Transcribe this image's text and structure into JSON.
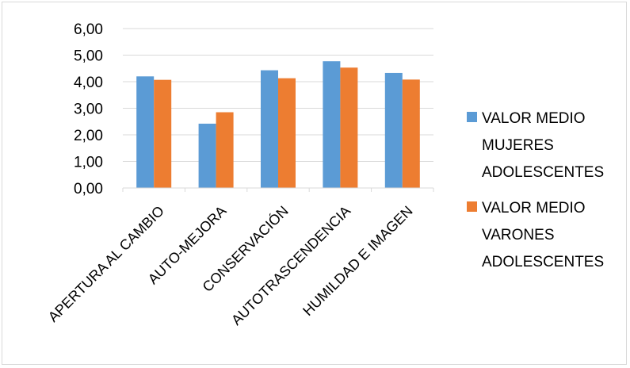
{
  "chart_data": {
    "type": "bar",
    "categories": [
      "APERTURA AL CAMBIO",
      "AUTO-MEJORA",
      "CONSERVACIÓN",
      "AUTOTRASCENDENCIA",
      "HUMILDAD E IMAGEN"
    ],
    "series": [
      {
        "name": "VALOR MEDIO MUJERES ADOLESCENTES",
        "name_lines": [
          "VALOR MEDIO",
          "MUJERES",
          "ADOLESCENTES"
        ],
        "color": "#5b9bd5",
        "values": [
          4.2,
          2.42,
          4.43,
          4.77,
          4.33
        ]
      },
      {
        "name": "VALOR MEDIO VARONES ADOLESCENTES",
        "name_lines": [
          "VALOR MEDIO",
          "VARONES",
          "ADOLESCENTES"
        ],
        "color": "#ed7d31",
        "values": [
          4.07,
          2.85,
          4.13,
          4.53,
          4.08
        ]
      }
    ],
    "y_ticks": [
      "0,00",
      "1,00",
      "2,00",
      "3,00",
      "4,00",
      "5,00",
      "6,00"
    ],
    "ylim": [
      0,
      6
    ],
    "grid": true,
    "legend_position": "right",
    "gridline_color": "#d9d9d9"
  }
}
